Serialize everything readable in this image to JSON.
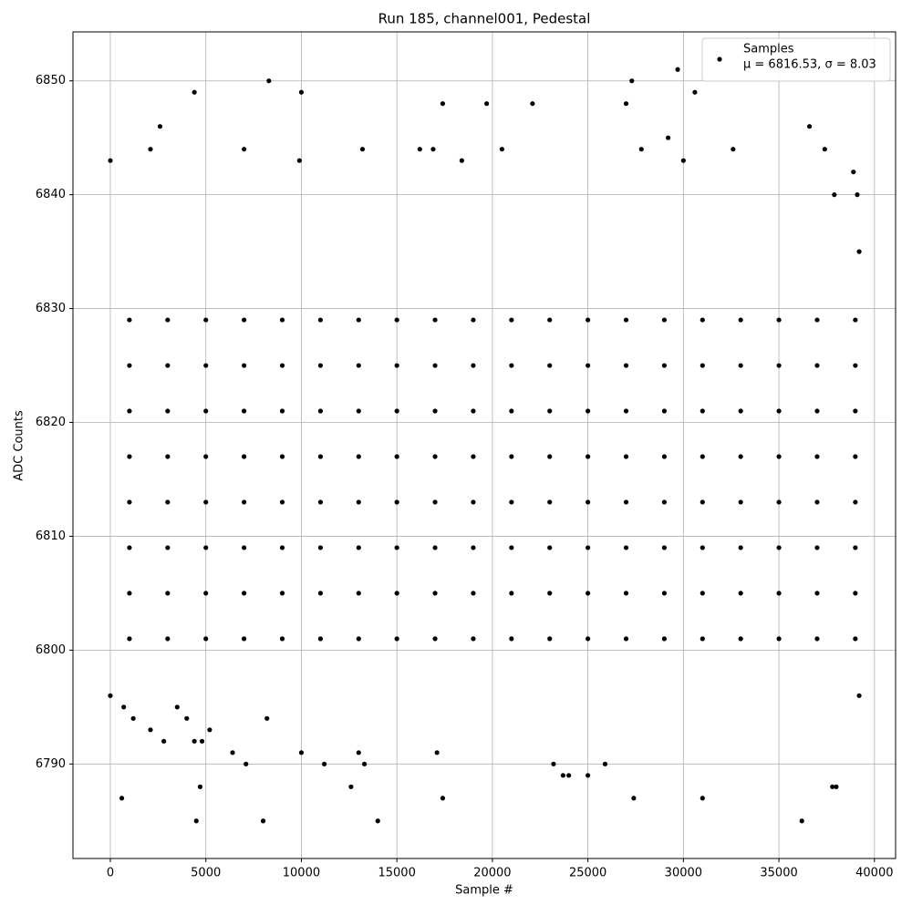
{
  "chart_data": {
    "type": "scatter",
    "title": "Run 185, channel001, Pedestal",
    "x_label": "Sample #",
    "y_label": "ADC Counts",
    "xlim": [
      -1957,
      41107
    ],
    "ylim": [
      6781.7,
      6854.3
    ],
    "xticks": [
      0,
      5000,
      10000,
      15000,
      20000,
      25000,
      30000,
      35000,
      40000
    ],
    "yticks": [
      6790,
      6800,
      6810,
      6820,
      6830,
      6840,
      6850
    ],
    "grid": true,
    "legend_loc": "upper-right",
    "legend_stats": "μ = 6816.53, σ = 8.03",
    "series": [
      {
        "name": "Samples",
        "color": "#000000",
        "x": [
          0,
          0,
          600,
          700,
          1200,
          2100,
          2600,
          2100,
          2800,
          3500,
          4000,
          4400,
          4400,
          4500,
          4700,
          4800,
          5200,
          6400,
          7100,
          7000,
          8000,
          8300,
          8200,
          9900,
          10000,
          10000,
          11200,
          12600,
          13000,
          13200,
          13300,
          14000,
          16200,
          16900,
          17100,
          17400,
          17400,
          18400,
          19700,
          20500,
          22100,
          23200,
          23700,
          24000,
          25000,
          25900,
          27000,
          27300,
          27400,
          27800,
          29200,
          29700,
          30000,
          30600,
          31000,
          32600,
          36200,
          36600,
          37400,
          37800,
          38000,
          37900,
          38900,
          39100,
          39200,
          39200,
          1000,
          1000,
          1000,
          1000,
          1000,
          1000,
          1000,
          1000,
          3000,
          3000,
          3000,
          3000,
          3000,
          3000,
          3000,
          3000,
          5000,
          5000,
          5000,
          5000,
          5000,
          5000,
          5000,
          5000,
          7000,
          7000,
          7000,
          7000,
          7000,
          7000,
          7000,
          7000,
          9000,
          9000,
          9000,
          9000,
          9000,
          9000,
          9000,
          9000,
          11000,
          11000,
          11000,
          11000,
          11000,
          11000,
          11000,
          11000,
          13000,
          13000,
          13000,
          13000,
          13000,
          13000,
          13000,
          13000,
          15000,
          15000,
          15000,
          15000,
          15000,
          15000,
          15000,
          15000,
          17000,
          17000,
          17000,
          17000,
          17000,
          17000,
          17000,
          17000,
          19000,
          19000,
          19000,
          19000,
          19000,
          19000,
          19000,
          19000,
          21000,
          21000,
          21000,
          21000,
          21000,
          21000,
          21000,
          21000,
          23000,
          23000,
          23000,
          23000,
          23000,
          23000,
          23000,
          23000,
          25000,
          25000,
          25000,
          25000,
          25000,
          25000,
          25000,
          25000,
          27000,
          27000,
          27000,
          27000,
          27000,
          27000,
          27000,
          27000,
          29000,
          29000,
          29000,
          29000,
          29000,
          29000,
          29000,
          29000,
          31000,
          31000,
          31000,
          31000,
          31000,
          31000,
          31000,
          31000,
          33000,
          33000,
          33000,
          33000,
          33000,
          33000,
          33000,
          33000,
          35000,
          35000,
          35000,
          35000,
          35000,
          35000,
          35000,
          35000,
          37000,
          37000,
          37000,
          37000,
          37000,
          37000,
          37000,
          37000,
          39000,
          39000,
          39000,
          39000,
          39000,
          39000,
          39000,
          39000
        ],
        "values": [
          6843,
          6796,
          6787,
          6795,
          6794,
          6793,
          6846,
          6844,
          6792,
          6795,
          6794,
          6849,
          6792,
          6785,
          6788,
          6792,
          6793,
          6791,
          6790,
          6844,
          6785,
          6850,
          6794,
          6843,
          6849,
          6791,
          6790,
          6788,
          6791,
          6844,
          6790,
          6785,
          6844,
          6844,
          6791,
          6848,
          6787,
          6843,
          6848,
          6844,
          6848,
          6790,
          6789,
          6789,
          6789,
          6790,
          6848,
          6850,
          6787,
          6844,
          6845,
          6851,
          6843,
          6849,
          6787,
          6844,
          6785,
          6846,
          6844,
          6788,
          6788,
          6840,
          6842,
          6840,
          6796,
          6835,
          6801,
          6805,
          6809,
          6813,
          6817,
          6821,
          6825,
          6829,
          6801,
          6805,
          6809,
          6813,
          6817,
          6821,
          6825,
          6829,
          6801,
          6805,
          6809,
          6813,
          6817,
          6821,
          6825,
          6829,
          6801,
          6805,
          6809,
          6813,
          6817,
          6821,
          6825,
          6829,
          6801,
          6805,
          6809,
          6813,
          6817,
          6821,
          6825,
          6829,
          6801,
          6805,
          6809,
          6813,
          6817,
          6821,
          6825,
          6829,
          6801,
          6805,
          6809,
          6813,
          6817,
          6821,
          6825,
          6829,
          6801,
          6805,
          6809,
          6813,
          6817,
          6821,
          6825,
          6829,
          6801,
          6805,
          6809,
          6813,
          6817,
          6821,
          6825,
          6829,
          6801,
          6805,
          6809,
          6813,
          6817,
          6821,
          6825,
          6829,
          6801,
          6805,
          6809,
          6813,
          6817,
          6821,
          6825,
          6829,
          6801,
          6805,
          6809,
          6813,
          6817,
          6821,
          6825,
          6829,
          6801,
          6805,
          6809,
          6813,
          6817,
          6821,
          6825,
          6829,
          6801,
          6805,
          6809,
          6813,
          6817,
          6821,
          6825,
          6829,
          6801,
          6805,
          6809,
          6813,
          6817,
          6821,
          6825,
          6829,
          6801,
          6805,
          6809,
          6813,
          6817,
          6821,
          6825,
          6829,
          6801,
          6805,
          6809,
          6813,
          6817,
          6821,
          6825,
          6829,
          6801,
          6805,
          6809,
          6813,
          6817,
          6821,
          6825,
          6829,
          6801,
          6805,
          6809,
          6813,
          6817,
          6821,
          6825,
          6829,
          6801,
          6805,
          6809,
          6813,
          6817,
          6821,
          6825,
          6829
        ]
      }
    ]
  }
}
